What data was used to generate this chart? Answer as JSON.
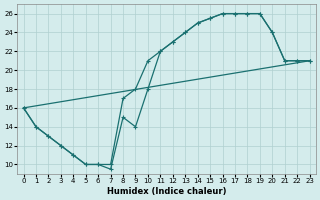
{
  "xlabel": "Humidex (Indice chaleur)",
  "bg_color": "#d4ecec",
  "grid_color": "#b0d0d0",
  "line_color": "#1a7070",
  "xlim": [
    -0.5,
    23.5
  ],
  "ylim": [
    9,
    27
  ],
  "xticks": [
    0,
    1,
    2,
    3,
    4,
    5,
    6,
    7,
    8,
    9,
    10,
    11,
    12,
    13,
    14,
    15,
    16,
    17,
    18,
    19,
    20,
    21,
    22,
    23
  ],
  "yticks": [
    10,
    12,
    14,
    16,
    18,
    20,
    22,
    24,
    26
  ],
  "line1_x": [
    0,
    1,
    2,
    3,
    4,
    5,
    6,
    7,
    8,
    9,
    10,
    11,
    12,
    13,
    14,
    15,
    16,
    17,
    18,
    19,
    20,
    21,
    22,
    23
  ],
  "line1_y": [
    16,
    14,
    13,
    12,
    11,
    10,
    10,
    10,
    17,
    18,
    21,
    22,
    23,
    24,
    25,
    25.5,
    26,
    26,
    26,
    26,
    24,
    21,
    21,
    21
  ],
  "line2_x": [
    0,
    1,
    2,
    3,
    4,
    5,
    6,
    7,
    8,
    9,
    10,
    11,
    12,
    13,
    14,
    15,
    16,
    17,
    18,
    19,
    20,
    21,
    22,
    23
  ],
  "line2_y": [
    16,
    14,
    13,
    12,
    11,
    10,
    10,
    9.5,
    15,
    14,
    18,
    22,
    23,
    24,
    25,
    25.5,
    26,
    26,
    26,
    26,
    24,
    21,
    21,
    21
  ],
  "line3_x": [
    0,
    23
  ],
  "line3_y": [
    16,
    21
  ]
}
